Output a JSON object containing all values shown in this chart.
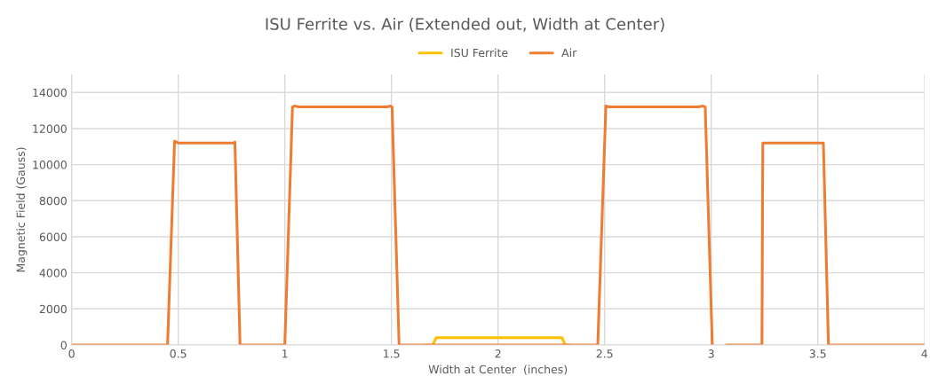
{
  "chart_data": {
    "type": "line",
    "title": "ISU Ferrite vs. Air (Extended out, Width at Center)",
    "xlabel": "Width at Center  (inches)",
    "ylabel": "Magnetic Field (Gauss)",
    "series": [
      {
        "name": "ISU Ferrite",
        "color": "#ffc000",
        "x": [
          1.66,
          1.694,
          1.71,
          2.3,
          2.315,
          2.34
        ],
        "values": [
          0,
          0,
          400,
          400,
          0,
          0
        ]
      },
      {
        "name": "Air",
        "color": "#ed7d31",
        "x": [
          0,
          0.45,
          0.483,
          0.5,
          0.76,
          0.766,
          0.79,
          1.0,
          1.036,
          1.045,
          1.065,
          1.48,
          1.495,
          1.503,
          1.536,
          2.468,
          2.506,
          2.52,
          2.94,
          2.962,
          2.972,
          3.005,
          null,
          3.07,
          3.238,
          3.242,
          3.526,
          3.55,
          4.0
        ],
        "values": [
          0,
          0,
          11300,
          11200,
          11200,
          11250,
          0,
          0,
          13200,
          13250,
          13200,
          13200,
          13250,
          13200,
          0,
          0,
          13250,
          13200,
          13200,
          13250,
          13200,
          0,
          null,
          0,
          0,
          11200,
          11200,
          0,
          0
        ]
      }
    ],
    "xlim": [
      0,
      4
    ],
    "xticks": [
      0,
      0.5,
      1,
      1.5,
      2,
      2.5,
      3,
      3.5,
      4
    ],
    "ylim": [
      0,
      15000
    ],
    "yticks": [
      0,
      2000,
      4000,
      6000,
      8000,
      10000,
      12000,
      14000
    ],
    "grid": true,
    "legend": "top",
    "marker": "none",
    "line_style": "solid"
  }
}
